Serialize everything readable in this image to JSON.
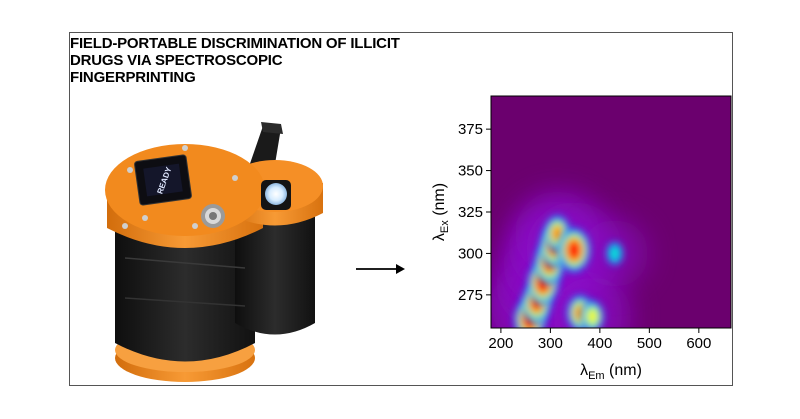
{
  "title_lines": [
    "FIELD-PORTABLE DISCRIMINATION OF ILLICIT",
    "DRUGS VIA SPECTROSCOPIC",
    "FINGERPRINTING"
  ],
  "device": {
    "screen_text": "READY",
    "colors": {
      "body": "#f28a1e",
      "housing": "#1b1b1b",
      "screen": "#0d0d12",
      "button_glow": "#cfeaff"
    }
  },
  "chart_data": {
    "type": "heatmap",
    "title": "",
    "xlabel": "λ",
    "xlabel_sub": "Em",
    "xlabel_unit": " (nm)",
    "ylabel": "λ",
    "ylabel_sub": "Ex",
    "ylabel_unit": " (nm)",
    "xlim": [
      180,
      665
    ],
    "ylim": [
      255,
      395
    ],
    "xticks": [
      200,
      300,
      400,
      500,
      600
    ],
    "yticks": [
      275,
      300,
      325,
      350,
      375
    ],
    "background_color": "#6b006e",
    "colormap": [
      "#6b006e",
      "#8a10c8",
      "#2a30ff",
      "#0aa0ff",
      "#10e0d0",
      "#40ff60",
      "#f8f820",
      "#ff8a10",
      "#ff1810"
    ],
    "peaks": [
      {
        "x": 258,
        "y": 260,
        "intensity": 0.95
      },
      {
        "x": 272,
        "y": 270,
        "intensity": 0.9
      },
      {
        "x": 285,
        "y": 282,
        "intensity": 0.95
      },
      {
        "x": 298,
        "y": 294,
        "intensity": 0.92
      },
      {
        "x": 308,
        "y": 304,
        "intensity": 0.9
      },
      {
        "x": 314,
        "y": 312,
        "intensity": 0.75
      },
      {
        "x": 348,
        "y": 302,
        "intensity": 1.0
      },
      {
        "x": 360,
        "y": 264,
        "intensity": 0.75
      },
      {
        "x": 385,
        "y": 262,
        "intensity": 0.6
      },
      {
        "x": 430,
        "y": 300,
        "intensity": 0.35
      }
    ]
  }
}
